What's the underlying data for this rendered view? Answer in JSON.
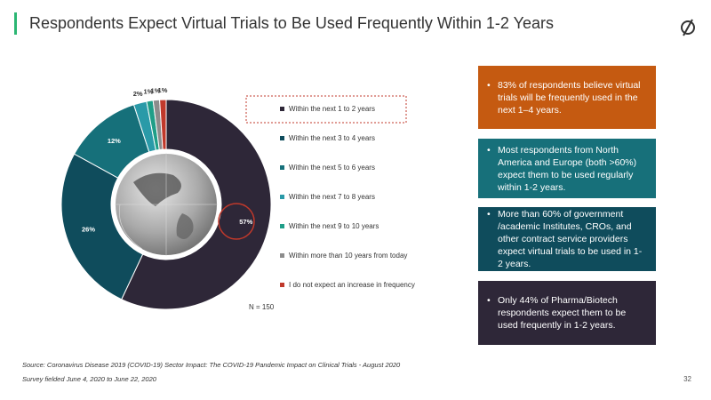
{
  "title": "Respondents Expect Virtual Trials to Be Used Frequently Within 1-2 Years",
  "chart_data": {
    "type": "pie",
    "categories": [
      "Within the next 1 to 2 years",
      "Within the next 3 to 4 years",
      "Within the next 5 to 6 years",
      "Within the next 7 to 8 years",
      "Within the next 9 to 10 years",
      "Within more than 10 years from today",
      "I do not expect an increase in frequency"
    ],
    "values": [
      57,
      26,
      12,
      2,
      1,
      1,
      1
    ],
    "value_labels": [
      "57%",
      "26%",
      "12%",
      "2%",
      "1%",
      "1%",
      "1%"
    ],
    "colors": [
      "#2e2738",
      "#0f4c5c",
      "#16707a",
      "#2a9aa8",
      "#1f9e88",
      "#8c8c8c",
      "#c0392b"
    ],
    "annotation": "N = 150"
  },
  "bullets": [
    "83% of respondents believe virtual trials will be frequently used in the next 1–4 years.",
    "Most respondents from North America and Europe (both >60%) expect them to be used regularly within 1-2 years.",
    "More than 60% of government /academic Institutes, CROs, and other contract service providers expect virtual trials to be used in 1-2 years.",
    "Only 44% of Pharma/Biotech respondents expect them to be used frequently in 1-2 years."
  ],
  "source": [
    "Source: Coronavirus Disease 2019 (COVID-19) Sector Impact: The COVID-19 Pandemic Impact on Clinical Trials - August 2020",
    "Survey fielded June 4, 2020 to June 22, 2020"
  ],
  "page_number": "32"
}
